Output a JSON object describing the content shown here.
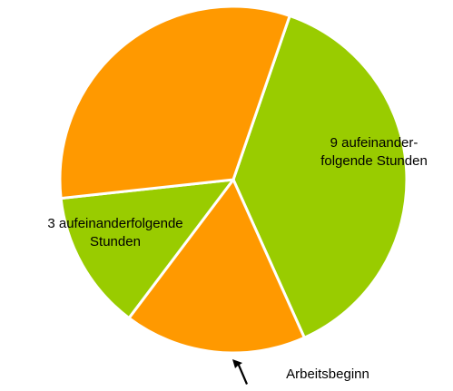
{
  "chart_data": {
    "type": "pie",
    "categories": [
      [
        "9 aufeinander-",
        "folgende Stunden"
      ],
      [
        "Arbeitsbeginn"
      ],
      [
        "3 aufeinanderfolgende",
        "Stunden"
      ],
      null
    ],
    "values": [
      38,
      17,
      13,
      32
    ],
    "colors": [
      "#99cc00",
      "#ff9900",
      "#99cc00",
      "#ff9900"
    ]
  }
}
